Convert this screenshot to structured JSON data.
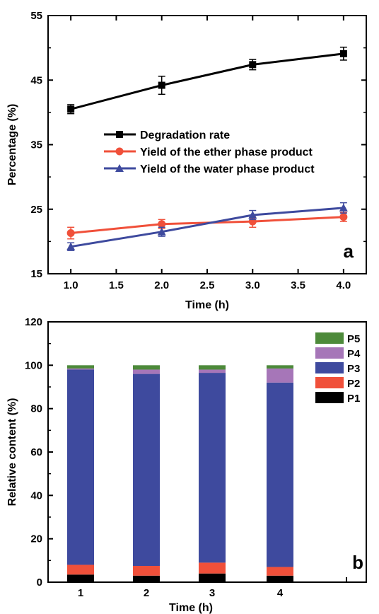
{
  "chart_data": [
    {
      "type": "line",
      "panel_label": "a",
      "xlabel": "Time (h)",
      "ylabel": "Percentage (%)",
      "xlim": [
        0.75,
        4.25
      ],
      "ylim": [
        15,
        55
      ],
      "x_ticks": [
        "1.0",
        "1.5",
        "2.0",
        "2.5",
        "3.0",
        "3.5",
        "4.0"
      ],
      "y_ticks": [
        "15",
        "25",
        "35",
        "45",
        "55"
      ],
      "legend_position": "center-left",
      "x": [
        1,
        2,
        3,
        4
      ],
      "series": [
        {
          "name": "Degradation rate",
          "color": "#000000",
          "marker": "square",
          "values": [
            40.5,
            44.2,
            47.4,
            49.1
          ],
          "errors": [
            0.7,
            1.4,
            0.8,
            1.0
          ]
        },
        {
          "name": "Yield of the ether phase product",
          "color": "#f0503a",
          "marker": "circle",
          "values": [
            21.3,
            22.7,
            23.1,
            23.8
          ],
          "errors": [
            0.9,
            0.7,
            0.9,
            0.7
          ]
        },
        {
          "name": "Yield of the water phase product",
          "color": "#3e4a9e",
          "marker": "triangle",
          "values": [
            19.2,
            21.5,
            24.1,
            25.2
          ],
          "errors": [
            0.6,
            0.7,
            0.7,
            0.8
          ]
        }
      ]
    },
    {
      "type": "bar",
      "stacked": true,
      "panel_label": "b",
      "xlabel": "Time (h)",
      "ylabel": "Relative content (%)",
      "ylim": [
        0,
        120
      ],
      "y_ticks": [
        "0",
        "20",
        "40",
        "60",
        "80",
        "100",
        "120"
      ],
      "categories": [
        "1",
        "2",
        "3",
        "4"
      ],
      "legend_position": "top-right",
      "series": [
        {
          "name": "P1",
          "color": "#000000",
          "values": [
            3.5,
            3.0,
            4.0,
            3.0
          ]
        },
        {
          "name": "P2",
          "color": "#f0503a",
          "values": [
            4.5,
            4.5,
            5.0,
            4.0
          ]
        },
        {
          "name": "P3",
          "color": "#3e4a9e",
          "values": [
            90.0,
            88.5,
            87.5,
            85.0
          ]
        },
        {
          "name": "P4",
          "color": "#a676b8",
          "values": [
            0.5,
            2.0,
            1.5,
            6.5
          ]
        },
        {
          "name": "P5",
          "color": "#4d8a3a",
          "values": [
            1.5,
            2.0,
            2.0,
            1.5
          ]
        }
      ]
    }
  ]
}
